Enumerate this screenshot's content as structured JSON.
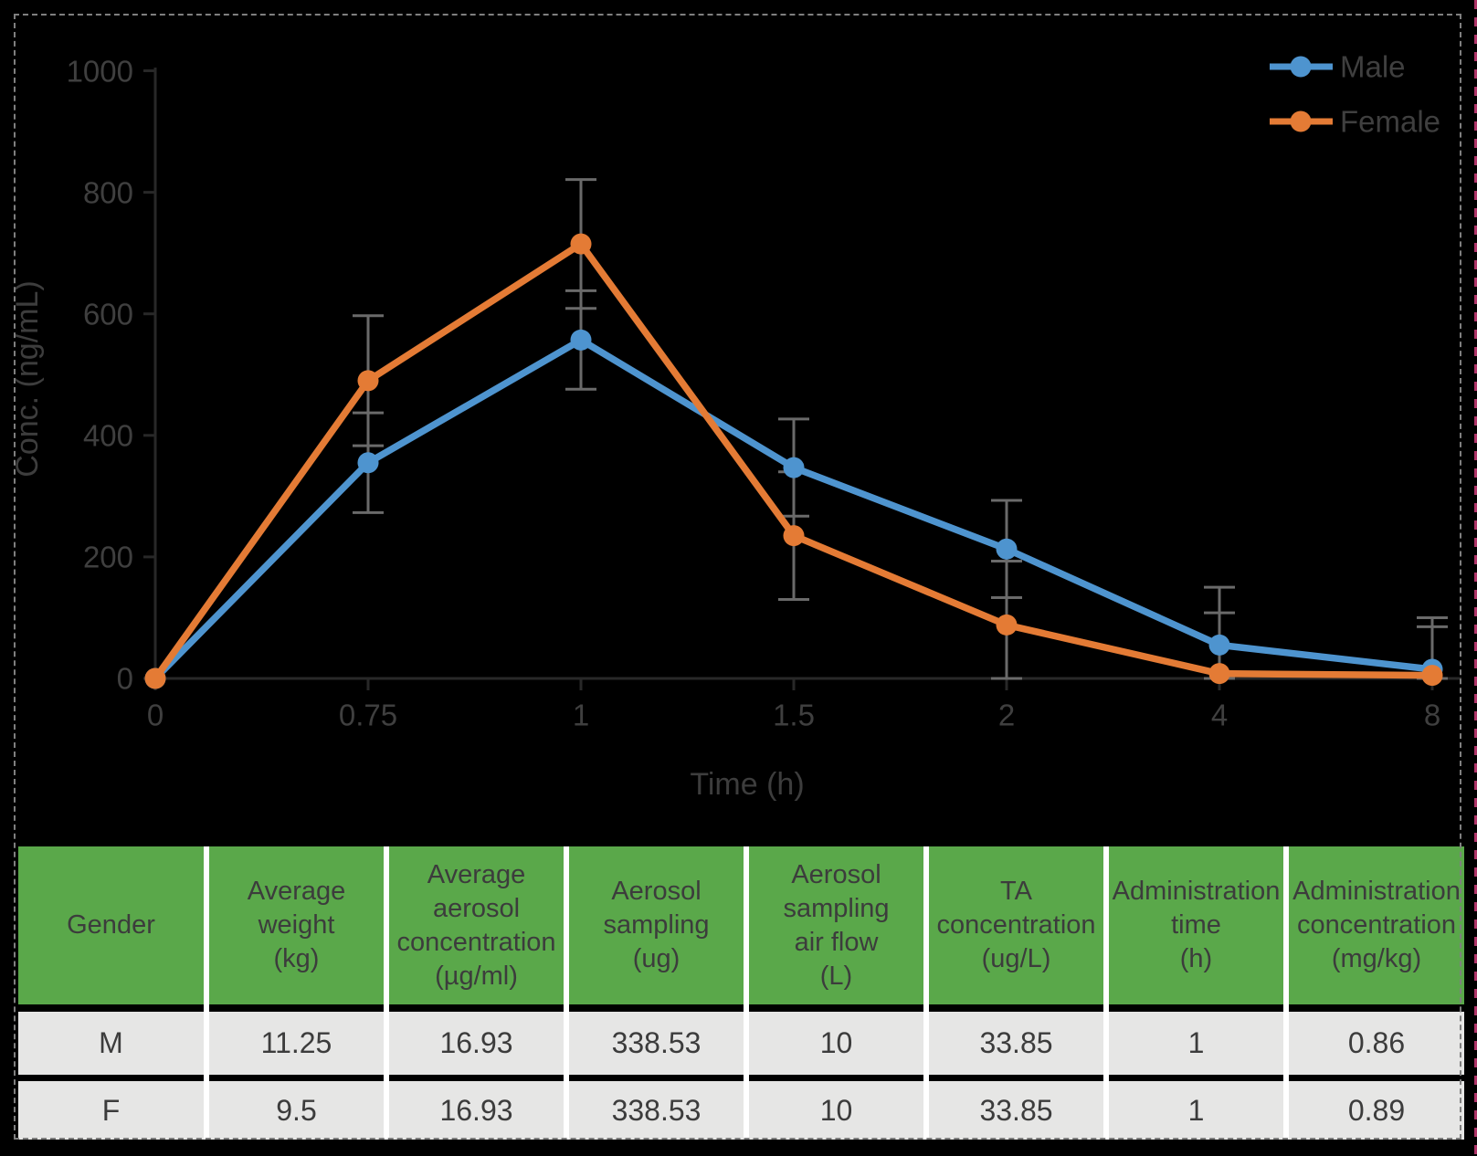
{
  "chart_data": {
    "type": "line",
    "xlabel": "Time (h)",
    "ylabel": "Conc. (ng/mL)",
    "categories": [
      "0",
      "0.75",
      "1",
      "1.5",
      "2",
      "4",
      "8"
    ],
    "yticks": [
      0,
      200,
      400,
      600,
      800,
      1000
    ],
    "ylim": [
      0,
      1000
    ],
    "grid": false,
    "legend_position": "top-right",
    "series": [
      {
        "name": "Male",
        "color": "#4E94CF",
        "values": [
          0,
          355,
          557,
          347,
          213,
          55,
          15
        ],
        "errors": [
          0,
          82,
          81,
          80,
          80,
          95,
          85
        ]
      },
      {
        "name": "Female",
        "color": "#E47B35",
        "values": [
          0,
          490,
          715,
          235,
          88,
          8,
          5
        ],
        "errors": [
          0,
          107,
          106,
          105,
          105,
          100,
          80
        ]
      }
    ],
    "colors": {
      "axis": "#282828",
      "error_bar": "#6A6A6A",
      "tick_text": "#3F3F3F"
    }
  },
  "table": {
    "header_bg": "#5AA84A",
    "row_bg": "#E6E6E5",
    "columns": [
      "Gender",
      "Average\nweight\n(kg)",
      "Average\naerosol\nconcentration\n(µg/ml)",
      "Aerosol\nsampling\n(ug)",
      "Aerosol\nsampling\nair flow\n(L)",
      "TA\nconcentration\n(ug/L)",
      "Administration\ntime\n(h)",
      "Administration\nconcentration\n(mg/kg)"
    ],
    "rows": [
      [
        "M",
        "11.25",
        "16.93",
        "338.53",
        "10",
        "33.85",
        "1",
        "0.86"
      ],
      [
        "F",
        "9.5",
        "16.93",
        "338.53",
        "10",
        "33.85",
        "1",
        "0.89"
      ]
    ]
  },
  "frame": {
    "dash_color": "#7F7F7F",
    "edge_color": "#AF3468"
  }
}
